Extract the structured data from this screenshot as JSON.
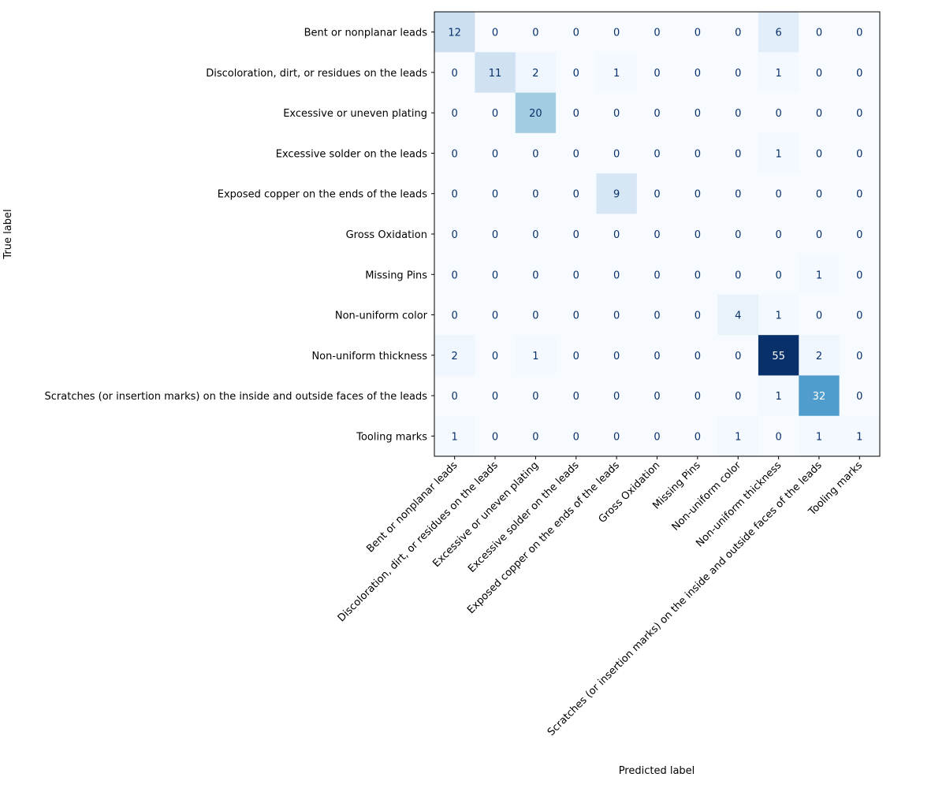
{
  "chart_data": {
    "type": "heatmap",
    "title": "",
    "xlabel": "Predicted label",
    "ylabel": "True label",
    "colormap": "Blues",
    "colorbar": false,
    "value_range": [
      0,
      55
    ],
    "x_categories": [
      "Bent or nonplanar leads",
      "Discoloration, dirt, or residues on the leads",
      "Excessive or uneven plating",
      "Excessive solder on the leads",
      "Exposed copper on the ends of the leads",
      "Gross Oxidation",
      "Missing Pins",
      "Non-uniform color",
      "Non-uniform thickness",
      "Scratches (or insertion marks) on the inside and outside faces of the leads",
      "Tooling marks"
    ],
    "y_categories": [
      "Bent or nonplanar leads",
      "Discoloration, dirt, or residues on the leads",
      "Excessive or uneven plating",
      "Excessive solder on the leads",
      "Exposed copper on the ends of the leads",
      "Gross Oxidation",
      "Missing Pins",
      "Non-uniform color",
      "Non-uniform thickness",
      "Scratches (or insertion marks) on the inside and outside faces of the leads",
      "Tooling marks"
    ],
    "matrix": [
      [
        12,
        0,
        0,
        0,
        0,
        0,
        0,
        0,
        6,
        0,
        0
      ],
      [
        0,
        11,
        2,
        0,
        1,
        0,
        0,
        0,
        1,
        0,
        0
      ],
      [
        0,
        0,
        20,
        0,
        0,
        0,
        0,
        0,
        0,
        0,
        0
      ],
      [
        0,
        0,
        0,
        0,
        0,
        0,
        0,
        0,
        1,
        0,
        0
      ],
      [
        0,
        0,
        0,
        0,
        9,
        0,
        0,
        0,
        0,
        0,
        0
      ],
      [
        0,
        0,
        0,
        0,
        0,
        0,
        0,
        0,
        0,
        0,
        0
      ],
      [
        0,
        0,
        0,
        0,
        0,
        0,
        0,
        0,
        0,
        1,
        0
      ],
      [
        0,
        0,
        0,
        0,
        0,
        0,
        0,
        4,
        1,
        0,
        0
      ],
      [
        2,
        0,
        1,
        0,
        0,
        0,
        0,
        0,
        55,
        2,
        0
      ],
      [
        0,
        0,
        0,
        0,
        0,
        0,
        0,
        0,
        1,
        32,
        0
      ],
      [
        1,
        0,
        0,
        0,
        0,
        0,
        0,
        1,
        0,
        1,
        1
      ]
    ]
  }
}
